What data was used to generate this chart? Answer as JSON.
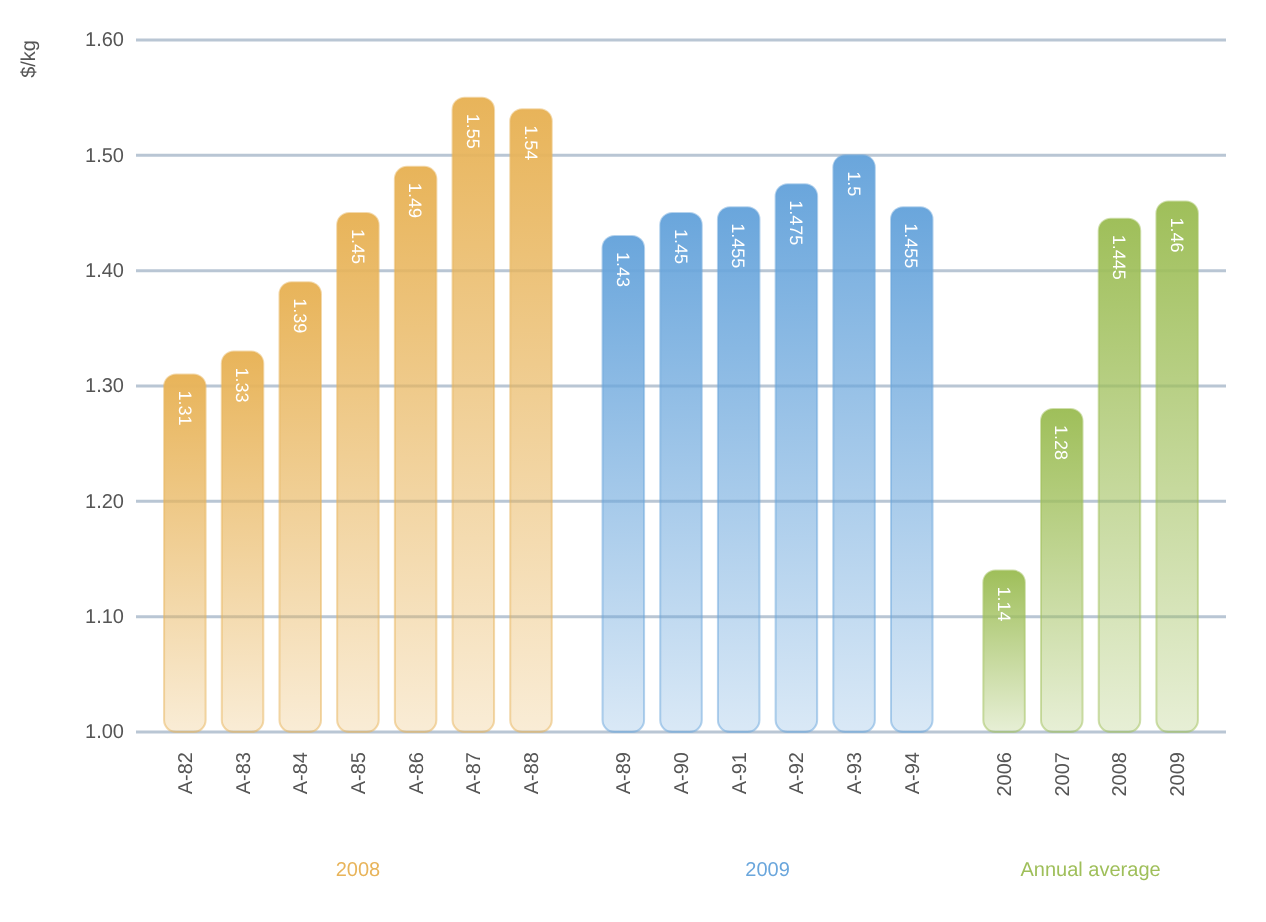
{
  "chart_data": {
    "type": "bar",
    "ylabel": "$/kg",
    "categories": [
      "A-82",
      "A-83",
      "A-84",
      "A-85",
      "A-86",
      "A-87",
      "A-88",
      "A-89",
      "A-90",
      "A-91",
      "A-92",
      "A-93",
      "A-94",
      "2006",
      "2007",
      "2008",
      "2009"
    ],
    "series": [
      {
        "name": "2008",
        "color": "#e8b45a",
        "values": [
          1.31,
          1.33,
          1.39,
          1.45,
          1.49,
          1.55,
          1.54,
          null,
          null,
          null,
          null,
          null,
          null,
          null,
          null,
          null,
          null
        ]
      },
      {
        "name": "2009",
        "color": "#6aa6dc",
        "values": [
          null,
          null,
          null,
          null,
          null,
          null,
          null,
          1.43,
          1.45,
          1.455,
          1.475,
          1.5,
          1.455,
          null,
          null,
          null,
          null
        ]
      },
      {
        "name": "Annual average",
        "color": "#9fbf5a",
        "values": [
          null,
          null,
          null,
          null,
          null,
          null,
          null,
          null,
          null,
          null,
          null,
          null,
          null,
          1.14,
          1.28,
          1.445,
          1.46
        ]
      }
    ],
    "ylim": [
      1.0,
      1.6
    ],
    "yticks": [
      {
        "value": 1.0,
        "label": "1.00"
      },
      {
        "value": 1.1,
        "label": "1.10"
      },
      {
        "value": 1.2,
        "label": "1.20"
      },
      {
        "value": 1.3,
        "label": "1.30"
      },
      {
        "value": 1.4,
        "label": "1.40"
      },
      {
        "value": 1.5,
        "label": "1.50"
      },
      {
        "value": 1.6,
        "label": "1.60"
      }
    ],
    "grid": "y",
    "data_labels": true
  }
}
